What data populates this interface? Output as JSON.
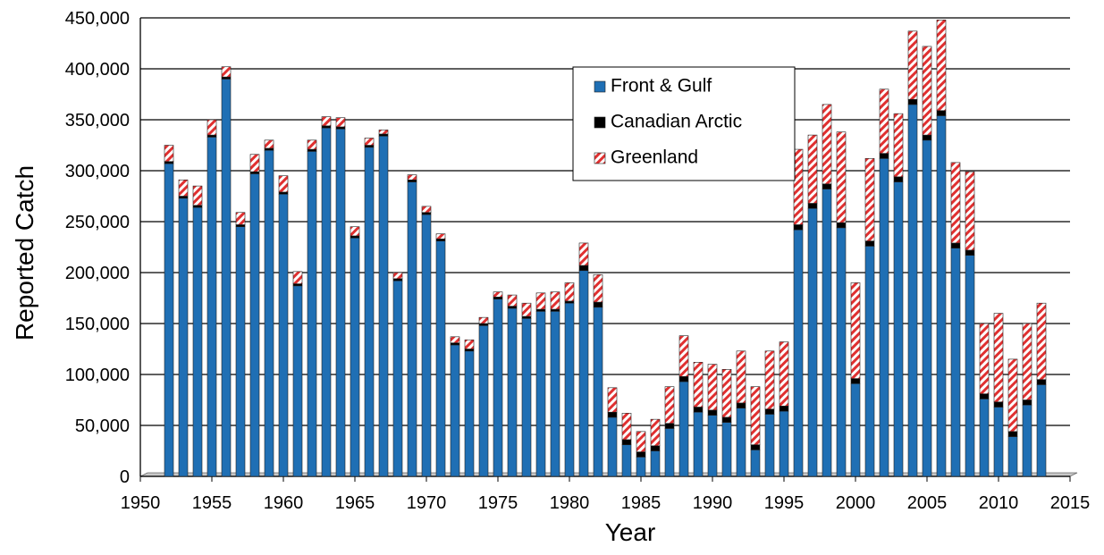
{
  "chart_data": {
    "type": "stacked-bar",
    "x_label": "Year",
    "y_label": "Reported Catch",
    "x": [
      1952,
      1953,
      1954,
      1955,
      1956,
      1957,
      1958,
      1959,
      1960,
      1961,
      1962,
      1963,
      1964,
      1965,
      1966,
      1967,
      1968,
      1969,
      1970,
      1971,
      1972,
      1973,
      1974,
      1975,
      1976,
      1977,
      1978,
      1979,
      1980,
      1981,
      1982,
      1983,
      1984,
      1985,
      1986,
      1987,
      1988,
      1989,
      1990,
      1991,
      1992,
      1993,
      1994,
      1995,
      1996,
      1997,
      1998,
      1999,
      2000,
      2001,
      2002,
      2003,
      2004,
      2005,
      2006,
      2007,
      2008,
      2009,
      2010,
      2011,
      2012,
      2013
    ],
    "series": [
      {
        "name": "Front & Gulf",
        "color": "#1f6fb4",
        "values": [
          307000,
          273000,
          264000,
          333000,
          390000,
          245000,
          297000,
          320000,
          277000,
          187000,
          319000,
          342000,
          341000,
          234000,
          323000,
          334000,
          192000,
          289000,
          257000,
          231000,
          129000,
          123000,
          148000,
          174000,
          165000,
          155000,
          162000,
          162000,
          170000,
          202000,
          166000,
          58000,
          31000,
          19000,
          25000,
          47000,
          93000,
          63000,
          60000,
          53000,
          67000,
          26000,
          61000,
          64000,
          242000,
          263000,
          282000,
          244000,
          91000,
          226000,
          312000,
          289000,
          365000,
          330000,
          354000,
          224000,
          217000,
          76000,
          68000,
          39000,
          70000,
          90000
        ]
      },
      {
        "name": "Canadian Arctic",
        "color": "#000000",
        "values": [
          2000,
          2000,
          2000,
          2000,
          2000,
          2000,
          2000,
          2000,
          2000,
          2000,
          2000,
          2000,
          2000,
          2000,
          2000,
          2000,
          2000,
          2000,
          2000,
          2000,
          2000,
          2000,
          2000,
          2000,
          2000,
          2000,
          2000,
          2000,
          2000,
          5000,
          5000,
          5000,
          5000,
          5000,
          5000,
          5000,
          5000,
          5000,
          5000,
          5000,
          5000,
          5000,
          5000,
          5000,
          5000,
          5000,
          5000,
          5000,
          5000,
          5000,
          5000,
          5000,
          5000,
          5000,
          5000,
          5000,
          5000,
          5000,
          5000,
          5000,
          5000,
          5000
        ]
      },
      {
        "name": "Greenland",
        "color": "#e03030",
        "pattern": "hatch",
        "values": [
          16000,
          16000,
          19000,
          15000,
          10000,
          12000,
          17000,
          8000,
          16000,
          12000,
          9000,
          9000,
          9000,
          9000,
          7000,
          4000,
          6000,
          5000,
          6000,
          5000,
          6000,
          9000,
          6000,
          5000,
          11000,
          13000,
          16000,
          17000,
          18000,
          22000,
          27000,
          24000,
          26000,
          20000,
          26000,
          36000,
          40000,
          44000,
          45000,
          47000,
          51000,
          57000,
          57000,
          63000,
          74000,
          67000,
          78000,
          89000,
          94000,
          81000,
          63000,
          62000,
          67000,
          87000,
          89000,
          79000,
          77000,
          69000,
          87000,
          71000,
          75000,
          75000
        ]
      }
    ],
    "xlim": [
      1950,
      2015
    ],
    "xticks": [
      1950,
      1955,
      1960,
      1965,
      1970,
      1975,
      1980,
      1985,
      1990,
      1995,
      2000,
      2005,
      2010,
      2015
    ],
    "ylim": [
      0,
      450000
    ],
    "yticks": [
      0,
      {
        "value": 50000,
        "label": "50,000"
      },
      {
        "value": 100000,
        "label": "100,000"
      },
      {
        "value": 150000,
        "label": "150,000"
      },
      {
        "value": 200000,
        "label": "200,000"
      },
      {
        "value": 250000,
        "label": "250,000"
      },
      {
        "value": 300000,
        "label": "300,000"
      },
      {
        "value": 350000,
        "label": "350,000"
      },
      {
        "value": 400000,
        "label": "400,000"
      },
      {
        "value": 450000,
        "label": "450,000"
      }
    ],
    "grid": true,
    "legend": "top-right"
  }
}
